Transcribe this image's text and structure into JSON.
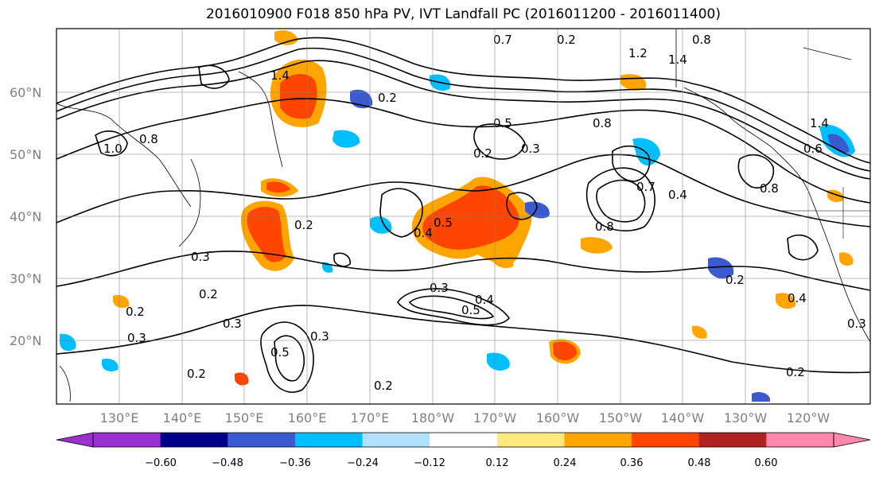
{
  "title": "2016010900 F018 850 hPa PV, IVT Landfall PC (2016011200 - 2016011400)",
  "map": {
    "lat_labels": [
      "60°N",
      "50°N",
      "40°N",
      "30°N",
      "20°N"
    ],
    "lon_labels": [
      "130°E",
      "140°E",
      "150°E",
      "160°E",
      "170°E",
      "180°W",
      "170°W",
      "160°W",
      "150°W",
      "140°W",
      "130°W",
      "120°W"
    ],
    "contour_labels": [
      "1.4",
      "0.7",
      "0.2",
      "1.2",
      "1.4",
      "0.8",
      "1.0",
      "0.8",
      "0.2",
      "0.5",
      "0.3",
      "0.2",
      "0.8",
      "0.7",
      "0.4",
      "0.2",
      "0.4",
      "0.5",
      "0.3",
      "0.4",
      "0.5",
      "0.3",
      "0.2",
      "0.3",
      "0.3",
      "0.2",
      "0.2",
      "0.5",
      "0.3",
      "0.2",
      "0.2",
      "0.4",
      "0.2",
      "0.3",
      "0.8",
      "0.6",
      "1.4",
      "0.8"
    ]
  },
  "colorbar": {
    "ticks": [
      "−0.60",
      "−0.48",
      "−0.36",
      "−0.24",
      "−0.12",
      "0.12",
      "0.24",
      "0.36",
      "0.48",
      "0.60"
    ],
    "colors": [
      "#9b30d0",
      "#00008b",
      "#3a5bd0",
      "#00bfff",
      "#b0e2ff",
      "#ffffff",
      "#ffe97f",
      "#ffa500",
      "#ff4500",
      "#b22222",
      "#ff88aa"
    ]
  }
}
